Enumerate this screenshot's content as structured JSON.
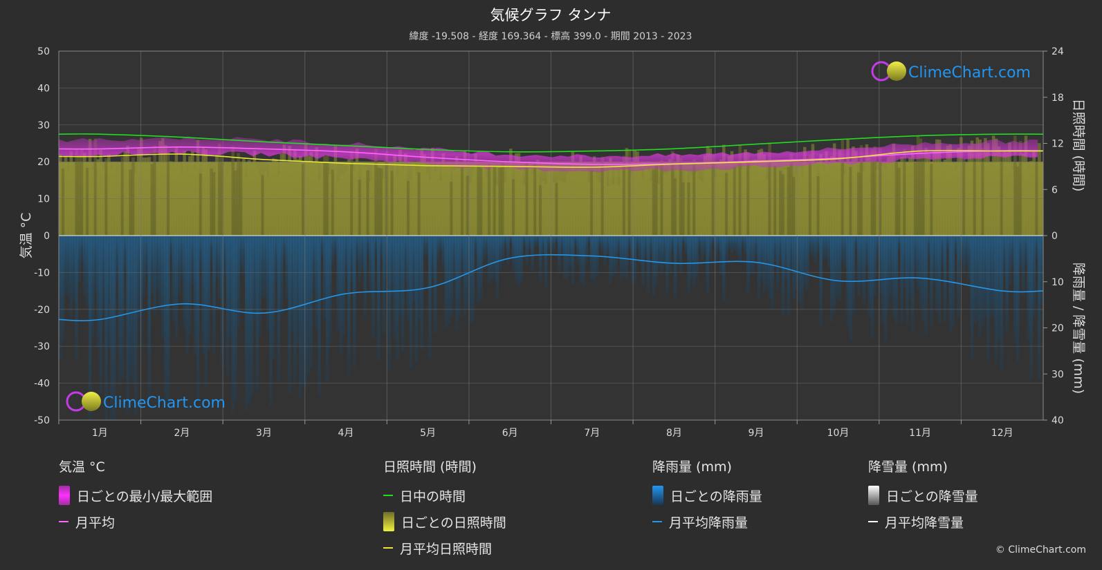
{
  "title": "気候グラフ タンナ",
  "subtitle": "緯度 -19.508 - 経度 169.364 - 標高 399.0 - 期間 2013 - 2023",
  "watermark": "ClimeChart.com",
  "copyright": "© ClimeChart.com",
  "colors": {
    "background": "#2d2d2d",
    "daylight": "#22dd22",
    "temp_range": "#e024e0",
    "temp_avg": "#ff66ff",
    "sunshine_bar": "#8a8a30",
    "sunshine_avg": "#e8e838",
    "rain_bar": "#1a5f8f",
    "rain_avg": "#2596e8",
    "snow_avg": "#ffffff",
    "logo_text": "#2196f3"
  },
  "chart_data": {
    "type": "line",
    "x_categories": [
      "1月",
      "2月",
      "3月",
      "4月",
      "5月",
      "6月",
      "7月",
      "8月",
      "9月",
      "10月",
      "11月",
      "12月"
    ],
    "y_left": {
      "label": "気温 °C",
      "ticks": [
        "50",
        "40",
        "30",
        "20",
        "10",
        "0",
        "-10",
        "-20",
        "-30",
        "-40",
        "-50"
      ],
      "range": [
        -50,
        50
      ]
    },
    "y_right_top": {
      "label": "日照時間 (時間)",
      "ticks": [
        "24",
        "18",
        "12",
        "6",
        "0"
      ],
      "range": [
        0,
        24
      ]
    },
    "y_right_bottom": {
      "label": "降雨量 / 降雪量 (mm)",
      "ticks": [
        "10",
        "20",
        "30",
        "40"
      ],
      "range": [
        0,
        40
      ]
    },
    "series": [
      {
        "name": "日中の時間",
        "axis": "sun",
        "values": [
          13.2,
          12.8,
          12.2,
          11.7,
          11.2,
          10.9,
          11.0,
          11.3,
          11.9,
          12.5,
          13.0,
          13.2
        ]
      },
      {
        "name": "月平均",
        "axis": "temp",
        "values": [
          23.5,
          24.0,
          23.5,
          22.7,
          21.2,
          20.0,
          19.3,
          19.5,
          20.2,
          21.0,
          22.3,
          23.0
        ]
      },
      {
        "name": "月平均日照時間",
        "axis": "sun",
        "values": [
          10.3,
          10.6,
          9.9,
          9.4,
          9.1,
          9.0,
          8.9,
          9.3,
          9.6,
          10.0,
          11.0,
          11.0
        ]
      },
      {
        "name": "月平均降雨量",
        "axis": "rain",
        "values": [
          18.2,
          14.8,
          16.8,
          12.6,
          11.3,
          4.9,
          4.4,
          6.0,
          5.8,
          9.8,
          9.2,
          12.0
        ]
      }
    ],
    "temp_range": {
      "min": [
        22.0,
        22.5,
        22.0,
        21.0,
        19.5,
        18.0,
        17.5,
        17.8,
        18.5,
        19.5,
        20.5,
        21.5
      ],
      "max": [
        26.0,
        26.5,
        26.0,
        25.0,
        23.5,
        22.0,
        21.5,
        21.8,
        22.5,
        23.5,
        25.0,
        25.5
      ]
    }
  },
  "legend": {
    "temp": {
      "heading": "気温 °C",
      "items": [
        "日ごとの最小/最大範囲",
        "月平均"
      ]
    },
    "sun": {
      "heading": "日照時間 (時間)",
      "items": [
        "日中の時間",
        "日ごとの日照時間",
        "月平均日照時間"
      ]
    },
    "rain": {
      "heading": "降雨量 (mm)",
      "items": [
        "日ごとの降雨量",
        "月平均降雨量"
      ]
    },
    "snow": {
      "heading": "降雪量 (mm)",
      "items": [
        "日ごとの降雪量",
        "月平均降雪量"
      ]
    }
  }
}
